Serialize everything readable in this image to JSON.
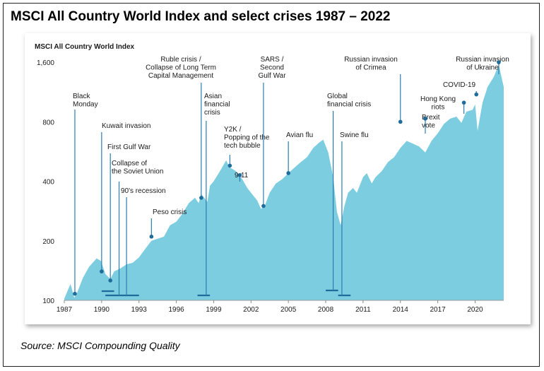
{
  "header": {
    "title": "MSCI All Country World Index and select crises 1987 – 2022",
    "source": "Source: MSCI Compounding Quality"
  },
  "chart_data": {
    "type": "area",
    "subtitle": "MSCI All Country World Index",
    "xlabel": "",
    "ylabel": "",
    "y_scale": "log",
    "ylim": [
      100,
      2000
    ],
    "xlim": [
      1987,
      2022.3
    ],
    "x_ticks": [
      {
        "value": 1987,
        "label": "1987"
      },
      {
        "value": 1990,
        "label": "1990"
      },
      {
        "value": 1993,
        "label": "1993"
      },
      {
        "value": 1996,
        "label": "1996"
      },
      {
        "value": 1999,
        "label": "1999"
      },
      {
        "value": 2002,
        "label": "2002"
      },
      {
        "value": 2005,
        "label": "2005"
      },
      {
        "value": 2008,
        "label": "2008"
      },
      {
        "value": 2011,
        "label": "2011"
      },
      {
        "value": 2014,
        "label": "2014"
      },
      {
        "value": 2017,
        "label": "2017"
      },
      {
        "value": 2020,
        "label": "2020"
      }
    ],
    "y_ticks": [
      {
        "value": 100,
        "label": "100"
      },
      {
        "value": 200,
        "label": "200"
      },
      {
        "value": 400,
        "label": "400"
      },
      {
        "value": 800,
        "label": "800"
      },
      {
        "value": 1600,
        "label": "1,600"
      }
    ],
    "colors": {
      "area": "#7dcde0",
      "marker": "#1f6b99",
      "leader": "#2b7db0",
      "bar": "#1f6b99",
      "text": "#1a1a1a"
    },
    "series": [
      {
        "name": "MSCI ACWI",
        "x": [
          1987.0,
          1987.5,
          1987.8,
          1988.0,
          1988.5,
          1989.0,
          1989.6,
          1989.95,
          1990.3,
          1990.7,
          1991.0,
          1991.5,
          1992.0,
          1992.5,
          1993.0,
          1993.5,
          1994.0,
          1994.5,
          1995.0,
          1995.5,
          1996.0,
          1996.5,
          1997.0,
          1997.5,
          1997.8,
          1998.0,
          1998.5,
          1998.7,
          1999.0,
          1999.5,
          2000.0,
          2000.3,
          2000.8,
          2001.3,
          2001.7,
          2002.0,
          2002.5,
          2002.8,
          2003.1,
          2003.5,
          2004.0,
          2004.5,
          2005.0,
          2005.5,
          2006.0,
          2006.5,
          2007.0,
          2007.5,
          2007.8,
          2008.2,
          2008.6,
          2008.9,
          2009.2,
          2009.5,
          2009.8,
          2010.2,
          2010.5,
          2011.0,
          2011.3,
          2011.7,
          2012.0,
          2012.5,
          2013.0,
          2013.5,
          2014.0,
          2014.5,
          2015.0,
          2015.5,
          2016.0,
          2016.5,
          2017.0,
          2017.5,
          2018.0,
          2018.5,
          2018.9,
          2019.3,
          2019.8,
          2020.0,
          2020.2,
          2020.6,
          2021.0,
          2021.5,
          2021.9,
          2022.3
        ],
        "values": [
          102,
          121,
          103,
          108,
          130,
          148,
          163,
          158,
          136,
          128,
          140,
          145,
          152,
          155,
          165,
          182,
          200,
          205,
          210,
          240,
          250,
          275,
          310,
          330,
          310,
          345,
          315,
          380,
          400,
          450,
          510,
          470,
          450,
          410,
          370,
          350,
          320,
          290,
          300,
          350,
          390,
          410,
          440,
          470,
          500,
          530,
          590,
          630,
          650,
          560,
          420,
          280,
          240,
          300,
          350,
          370,
          350,
          420,
          440,
          390,
          420,
          450,
          500,
          530,
          590,
          640,
          620,
          600,
          560,
          640,
          700,
          780,
          830,
          850,
          790,
          900,
          920,
          980,
          720,
          1000,
          1200,
          1350,
          1550,
          1200
        ]
      }
    ],
    "events": [
      {
        "label": "Black Monday",
        "x": 1987.85,
        "y": 108
      },
      {
        "label": "Kuwait invasion",
        "x": 1990.0,
        "y": 140
      },
      {
        "label": "First Gulf War",
        "x": 1990.7,
        "y": 126
      },
      {
        "label": "Collapse of the Soviet Union",
        "x": 1991.4
      },
      {
        "label": "90's recession",
        "x": 1992.0
      },
      {
        "label": "Peso crisis",
        "x": 1994.0,
        "y": 210
      },
      {
        "label": "Ruble crisis / Collapse of Long Term Capital Management",
        "x": 1998.0,
        "y": 330
      },
      {
        "label": "Asian financial crisis",
        "x": 1998.4
      },
      {
        "label": "Y2K / Popping of the tech bubble",
        "x": 2000.3,
        "y": 480
      },
      {
        "label": "9-11",
        "x": 2001.1,
        "y": 430
      },
      {
        "label": "SARS / Second Gulf War",
        "x": 2003.0,
        "y": 300
      },
      {
        "label": "Avian flu",
        "x": 2005.0,
        "y": 440
      },
      {
        "label": "Global financial crisis",
        "x": 2008.6
      },
      {
        "label": "Swine flu",
        "x": 2009.3
      },
      {
        "label": "Russian invasion of Crimea",
        "x": 2014.0,
        "y": 800
      },
      {
        "label": "Brexit vote",
        "x": 2016.0,
        "y": 830
      },
      {
        "label": "Hong Kong riots",
        "x": 2019.1,
        "y": 1000
      },
      {
        "label": "COVID-19",
        "x": 2020.1,
        "y": 1100
      },
      {
        "label": "Russian invasion of Ukraine",
        "x": 2021.9,
        "y": 1600
      }
    ],
    "duration_bars": [
      {
        "label": "Kuwait invasion / First Gulf War",
        "from": 1990.0,
        "to": 1991.0
      },
      {
        "label": "90's recession",
        "from": 1990.3,
        "to": 1993.0
      },
      {
        "label": "Asian financial crisis",
        "from": 1997.7,
        "to": 1998.7
      },
      {
        "label": "Global financial crisis",
        "from": 2008.0,
        "to": 2009.0
      },
      {
        "label": "Swine flu",
        "from": 2009.0,
        "to": 2010.0
      }
    ]
  }
}
